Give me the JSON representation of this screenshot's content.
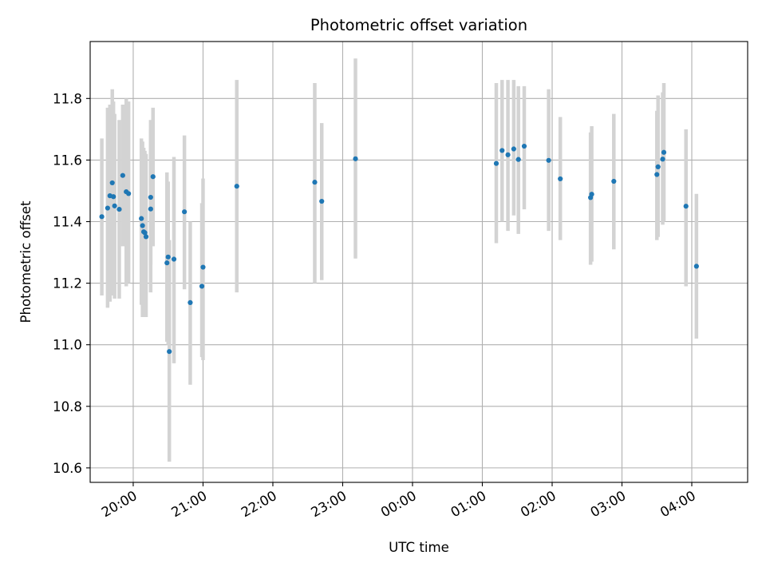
{
  "chart_data": {
    "type": "scatter",
    "title": "Photometric offset variation",
    "xlabel": "UTC time",
    "ylabel": "Photometric offset",
    "x_axis_type": "time",
    "x_base_date": "2000-01-01",
    "xlim": [
      "2000-01-01 19:23",
      "2000-01-02 04:48"
    ],
    "ylim": [
      10.553,
      11.985
    ],
    "grid": true,
    "error_bar_color": "#d3d3d3",
    "point_color": "#1f77b4",
    "x_ticks": [
      "20:00",
      "21:00",
      "22:00",
      "23:00",
      "00:00",
      "01:00",
      "02:00",
      "03:00",
      "04:00"
    ],
    "y_ticks": [
      10.6,
      10.8,
      11.0,
      11.2,
      11.4,
      11.6,
      11.8
    ],
    "series": [
      {
        "x": [
          "19:33",
          "19:38",
          "19:40",
          "19:42",
          "19:43",
          "19:44",
          "19:48",
          "19:51",
          "19:54",
          "19:56",
          "20:07",
          "20:08",
          "20:09",
          "20:10",
          "20:11",
          "20:15",
          "20:15",
          "20:17",
          "20:29",
          "20:30",
          "20:31",
          "20:35",
          "20:44",
          "20:49",
          "20:59",
          "21:00",
          "21:29",
          "22:36",
          "22:42",
          "23:11",
          "01:12",
          "01:17",
          "01:22",
          "01:27",
          "01:31",
          "01:36",
          "01:57",
          "02:07",
          "02:33",
          "02:34",
          "02:53",
          "03:30",
          "03:31",
          "03:35",
          "03:36",
          "03:55",
          "04:04"
        ],
        "y": [
          11.416,
          11.444,
          11.484,
          11.526,
          11.481,
          11.451,
          11.44,
          11.55,
          11.497,
          11.491,
          11.41,
          11.387,
          11.367,
          11.364,
          11.351,
          11.441,
          11.479,
          11.546,
          11.266,
          11.285,
          10.978,
          11.278,
          11.432,
          11.137,
          11.19,
          11.252,
          11.515,
          11.528,
          11.466,
          11.604,
          11.589,
          11.631,
          11.617,
          11.636,
          11.602,
          11.645,
          11.599,
          11.539,
          11.478,
          11.489,
          11.531,
          11.553,
          11.578,
          11.603,
          11.625,
          11.45,
          11.255
        ],
        "err_low": [
          11.16,
          11.12,
          11.14,
          11.17,
          11.16,
          11.15,
          11.15,
          11.32,
          11.19,
          11.2,
          11.13,
          11.09,
          11.1,
          11.09,
          11.09,
          11.17,
          11.26,
          11.32,
          11.01,
          11.0,
          10.62,
          10.94,
          11.18,
          10.87,
          10.96,
          10.95,
          11.17,
          11.2,
          11.21,
          11.28,
          11.33,
          11.4,
          11.37,
          11.42,
          11.36,
          11.44,
          11.37,
          11.34,
          11.26,
          11.27,
          11.31,
          11.34,
          11.35,
          11.39,
          11.4,
          11.19,
          11.02
        ],
        "err_high": [
          11.67,
          11.77,
          11.78,
          11.83,
          11.79,
          11.75,
          11.73,
          11.78,
          11.8,
          11.79,
          11.67,
          11.66,
          11.64,
          11.63,
          11.62,
          11.7,
          11.73,
          11.77,
          11.56,
          11.53,
          11.34,
          11.61,
          11.68,
          11.4,
          11.46,
          11.54,
          11.86,
          11.85,
          11.72,
          11.93,
          11.85,
          11.86,
          11.86,
          11.86,
          11.84,
          11.84,
          11.83,
          11.74,
          11.69,
          11.71,
          11.75,
          11.76,
          11.81,
          11.82,
          11.85,
          11.7,
          11.49
        ]
      }
    ]
  }
}
